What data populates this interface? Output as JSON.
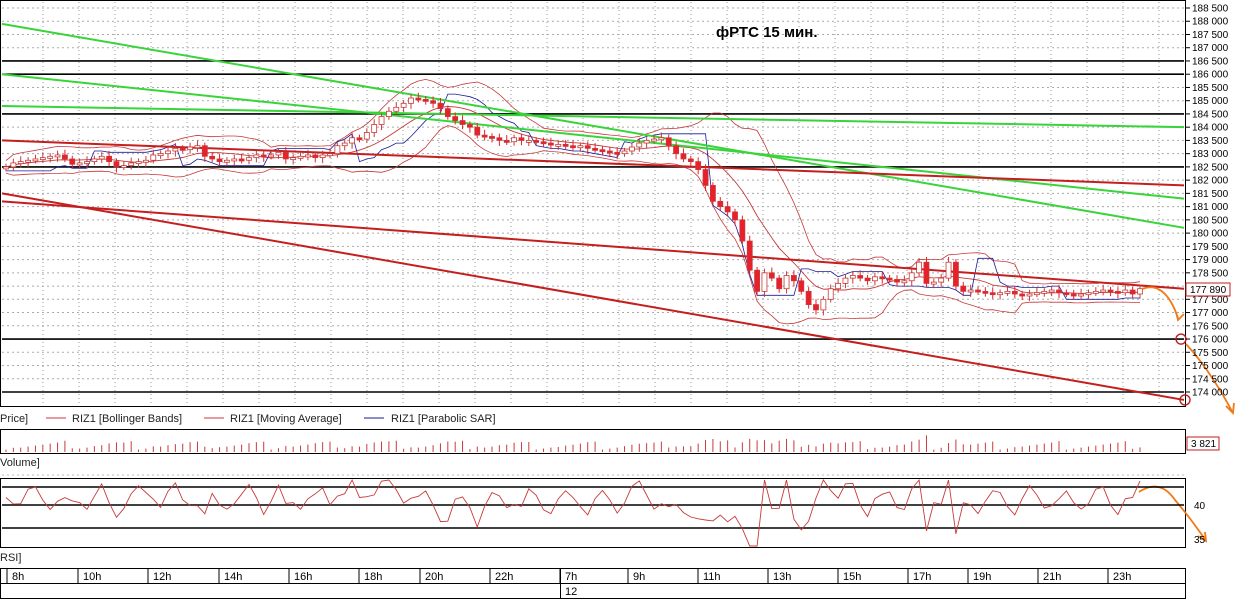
{
  "chart_data": {
    "type": "candlestick",
    "title": "фРТС   15 мин.",
    "symbol": "RIZ1",
    "price_axis": {
      "ticks": [
        "188 500",
        "188 000",
        "187 500",
        "187 000",
        "186 500",
        "186 000",
        "185 500",
        "185 000",
        "184 500",
        "184 000",
        "183 500",
        "183 000",
        "182 500",
        "182 000",
        "181 500",
        "181 000",
        "180 500",
        "180 000",
        "179 500",
        "179 000",
        "178 500",
        "178 000",
        "177 500",
        "177 000",
        "176 500",
        "176 000",
        "175 500",
        "175 000",
        "174 500",
        "174 000"
      ],
      "ylim": [
        173700,
        188600
      ],
      "last_price_label": "177 890"
    },
    "legend": {
      "price": "Price]",
      "items": [
        "RIZ1 [Bollinger Bands]",
        "RIZ1 [Moving Average]",
        "RIZ1 [Parabolic SAR]"
      ]
    },
    "volume_panel": {
      "label": "Volume]",
      "last_value_label": "3 821"
    },
    "rsi_panel": {
      "label": "RSI]",
      "ticks": [
        "40",
        "35"
      ]
    },
    "time_axis": {
      "ticks": [
        "8h",
        "10h",
        "12h",
        "14h",
        "16h",
        "18h",
        "20h",
        "22h",
        "7h",
        "9h",
        "11h",
        "13h",
        "15h",
        "17h",
        "19h",
        "21h",
        "23h"
      ],
      "date_label": "12"
    },
    "horizontal_levels": [
      186500,
      186000,
      184500,
      182500,
      176000,
      174000
    ],
    "candles_close": [
      182500,
      182650,
      182700,
      182750,
      182800,
      182850,
      182900,
      182950,
      182800,
      182600,
      182650,
      182700,
      182800,
      182900,
      182700,
      182500,
      182550,
      182650,
      182700,
      182750,
      182950,
      183000,
      183100,
      183200,
      183150,
      183250,
      183300,
      182900,
      182800,
      182700,
      182750,
      182800,
      182750,
      182850,
      182950,
      182900,
      182950,
      183050,
      182800,
      182850,
      182900,
      182950,
      182850,
      182950,
      183000,
      183300,
      183400,
      183600,
      183550,
      183800,
      184100,
      184400,
      184600,
      184750,
      184900,
      185100,
      185050,
      185000,
      184900,
      184700,
      184400,
      184250,
      184100,
      184000,
      183700,
      183650,
      183600,
      183500,
      183450,
      183600,
      183500,
      183500,
      183450,
      183400,
      183350,
      183350,
      183300,
      183250,
      183300,
      183200,
      183150,
      183100,
      183050,
      183000,
      183100,
      183250,
      183400,
      183500,
      183550,
      183600,
      183300,
      183000,
      182800,
      182700,
      182400,
      181800,
      181200,
      181000,
      180800,
      180500,
      179700,
      178600,
      177800,
      178500,
      178300,
      177900,
      178400,
      178200,
      177800,
      177300,
      177100,
      177500,
      177900,
      178100,
      178300,
      178400,
      178300,
      178200,
      178350,
      178300,
      178250,
      178150,
      178200,
      178500,
      178900,
      178100,
      178150,
      178300,
      178900,
      178000,
      177800,
      177850,
      177800,
      177750,
      177700,
      177750,
      177800,
      177700,
      177650,
      177700,
      177750,
      177800,
      177850,
      177750,
      177700,
      177650,
      177700,
      177750,
      177800,
      177850,
      177800,
      177750,
      177850,
      177700,
      177900
    ],
    "colors": {
      "up": "#ffffff",
      "down": "#e8202a",
      "bollinger": "#c8383a",
      "moving_average": "#c8383a",
      "parabolic_sar": "#1a1a9a",
      "trend_green": "#39d43a",
      "trend_red": "#c41e1e",
      "forecast": "#f07a18"
    }
  }
}
